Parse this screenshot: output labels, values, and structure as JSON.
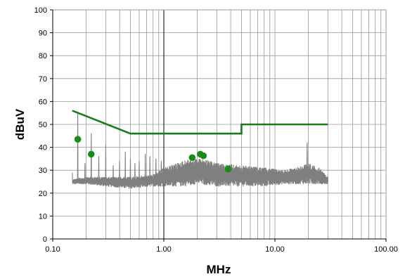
{
  "chart_data": {
    "type": "line",
    "xlabel": "MHz",
    "ylabel": "dBuV",
    "x_scale": "log",
    "xlim": [
      0.1,
      100
    ],
    "ylim": [
      0,
      100
    ],
    "grid": true,
    "x_ticks": [
      {
        "value": 0.1,
        "label": "0.10"
      },
      {
        "value": 1,
        "label": "1.00"
      },
      {
        "value": 10,
        "label": "10.00"
      },
      {
        "value": 100,
        "label": "100.00"
      }
    ],
    "y_ticks": [
      0,
      10,
      20,
      30,
      40,
      50,
      60,
      70,
      80,
      90,
      100
    ],
    "colors": {
      "noise": "#7f7f7f",
      "limit": "#1a7a1a",
      "points": "#1a8a1a",
      "grid": "#999999",
      "major_grid": "#000000"
    },
    "series": [
      {
        "kind": "noise-envelope",
        "floor": [
          [
            0.15,
            24
          ],
          [
            0.2,
            24
          ],
          [
            0.3,
            23
          ],
          [
            0.5,
            22
          ],
          [
            0.8,
            23
          ],
          [
            1.0,
            23
          ],
          [
            1.5,
            23
          ],
          [
            2,
            24
          ],
          [
            3,
            23
          ],
          [
            5,
            23
          ],
          [
            8,
            23
          ],
          [
            12,
            24
          ],
          [
            20,
            24
          ],
          [
            30,
            24
          ]
        ],
        "ceiling": [
          [
            0.15,
            26
          ],
          [
            0.2,
            27
          ],
          [
            0.3,
            27
          ],
          [
            0.5,
            27
          ],
          [
            0.8,
            28
          ],
          [
            1.0,
            31
          ],
          [
            1.3,
            33
          ],
          [
            1.7,
            35
          ],
          [
            2.2,
            35
          ],
          [
            3,
            33
          ],
          [
            5,
            32
          ],
          [
            8,
            31
          ],
          [
            12,
            30
          ],
          [
            15,
            31
          ],
          [
            20,
            33
          ],
          [
            25,
            31
          ],
          [
            30,
            27
          ]
        ],
        "peaks": [
          [
            0.15,
            29
          ],
          [
            0.168,
            55
          ],
          [
            0.195,
            33
          ],
          [
            0.222,
            46
          ],
          [
            0.26,
            36
          ],
          [
            0.3,
            41
          ],
          [
            0.35,
            32
          ],
          [
            0.4,
            34
          ],
          [
            0.45,
            38
          ],
          [
            0.5,
            35
          ],
          [
            0.55,
            33
          ],
          [
            0.6,
            34
          ],
          [
            0.68,
            37
          ],
          [
            0.75,
            36
          ],
          [
            0.85,
            35
          ],
          [
            0.95,
            34
          ],
          [
            19.5,
            42
          ]
        ]
      },
      {
        "kind": "limit",
        "points": [
          [
            0.15,
            56
          ],
          [
            0.5,
            46
          ],
          [
            5,
            46
          ],
          [
            5,
            50
          ],
          [
            30,
            50
          ]
        ]
      },
      {
        "kind": "markers",
        "points": [
          [
            0.168,
            43.5
          ],
          [
            0.222,
            37
          ],
          [
            1.8,
            35.5
          ],
          [
            2.13,
            37
          ],
          [
            2.27,
            36.3
          ],
          [
            3.8,
            30.5
          ]
        ]
      }
    ]
  }
}
